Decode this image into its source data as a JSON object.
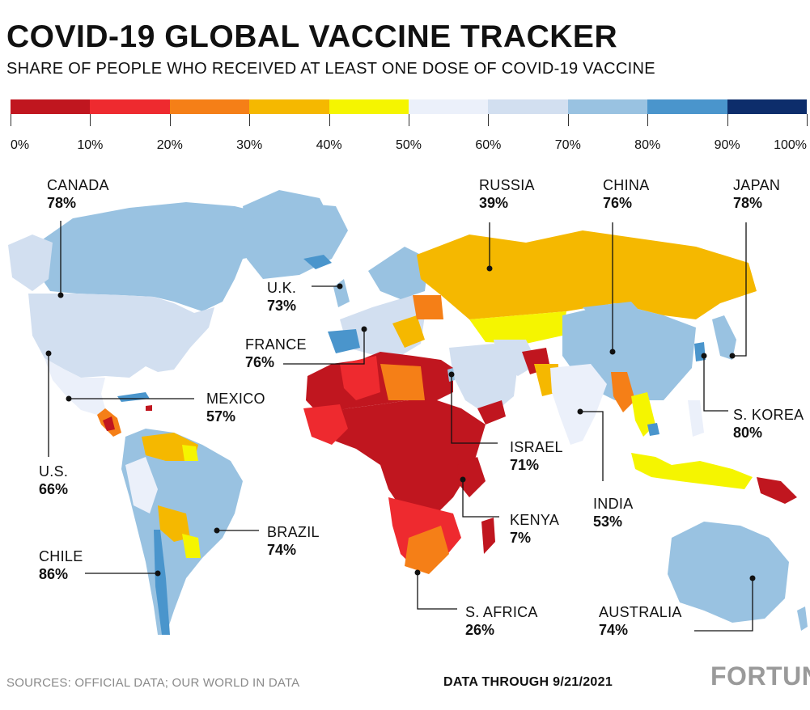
{
  "title": "COVID-19 GLOBAL VACCINE TRACKER",
  "subtitle": "SHARE OF PEOPLE WHO RECEIVED AT LEAST ONE DOSE OF COVID-19 VACCINE",
  "legend": {
    "labels": [
      "0%",
      "10%",
      "20%",
      "30%",
      "40%",
      "50%",
      "60%",
      "70%",
      "80%",
      "90%",
      "100%"
    ],
    "colors": [
      "#c0161f",
      "#ee2a2f",
      "#f57f17",
      "#f5b800",
      "#f5f500",
      "#ebf0fa",
      "#d2dff0",
      "#99c2e1",
      "#4a95cc",
      "#0d2d6b"
    ]
  },
  "callouts": [
    {
      "id": "canada",
      "name": "CANADA",
      "value": "78%"
    },
    {
      "id": "russia",
      "name": "RUSSIA",
      "value": "39%"
    },
    {
      "id": "china",
      "name": "CHINA",
      "value": "76%"
    },
    {
      "id": "japan",
      "name": "JAPAN",
      "value": "78%"
    },
    {
      "id": "uk",
      "name": "U.K.",
      "value": "73%"
    },
    {
      "id": "france",
      "name": "FRANCE",
      "value": "76%"
    },
    {
      "id": "mexico",
      "name": "MEXICO",
      "value": "57%"
    },
    {
      "id": "skorea",
      "name": "S. KOREA",
      "value": "80%"
    },
    {
      "id": "israel",
      "name": "ISRAEL",
      "value": "71%"
    },
    {
      "id": "us",
      "name": "U.S.",
      "value": "66%"
    },
    {
      "id": "india",
      "name": "INDIA",
      "value": "53%"
    },
    {
      "id": "kenya",
      "name": "KENYA",
      "value": "7%"
    },
    {
      "id": "brazil",
      "name": "BRAZIL",
      "value": "74%"
    },
    {
      "id": "chile",
      "name": "CHILE",
      "value": "86%"
    },
    {
      "id": "safrica",
      "name": "S. AFRICA",
      "value": "26%"
    },
    {
      "id": "australia",
      "name": "AUSTRALIA",
      "value": "74%"
    }
  ],
  "footer": {
    "sources": "SOURCES: OFFICIAL DATA; OUR WORLD IN DATA",
    "data_through": "DATA THROUGH 9/21/2021",
    "logo": "FORTUNE"
  }
}
